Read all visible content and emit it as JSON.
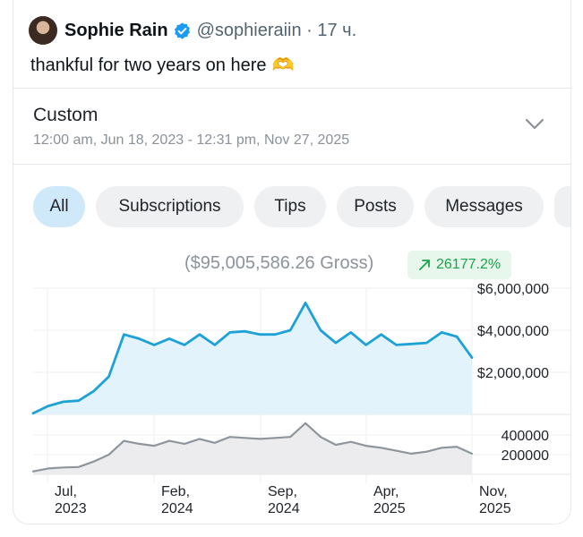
{
  "tweet": {
    "author_name": "Sophie Rain",
    "handle": "@sophieraiin · 17 ч.",
    "text": "thankful for two years on here",
    "emoji": "🫶"
  },
  "range": {
    "title": "Custom",
    "subtitle": "12:00 am, Jun 18, 2023 - 12:31 pm, Nov 27, 2025"
  },
  "tabs": [
    {
      "label": "All",
      "active": true
    },
    {
      "label": "Subscriptions",
      "active": false
    },
    {
      "label": "Tips",
      "active": false
    },
    {
      "label": "Posts",
      "active": false
    },
    {
      "label": "Messages",
      "active": false
    }
  ],
  "summary": {
    "gross": "($95,005,586.26 Gross)",
    "change": "26177.2%"
  },
  "colors": {
    "accent": "#1da1d6",
    "area_fill": "#e2f3fc",
    "secondary_line": "#8e959c",
    "secondary_fill": "#ececee",
    "positive": "#1aa34a"
  },
  "chart_data": [
    {
      "type": "area",
      "title": "Earnings",
      "x": [
        "Jun 2023",
        "Jul 2023",
        "Aug 2023",
        "Sep 2023",
        "Oct 2023",
        "Nov 2023",
        "Dec 2023",
        "Jan 2024",
        "Feb 2024",
        "Mar 2024",
        "Apr 2024",
        "May 2024",
        "Jun 2024",
        "Jul 2024",
        "Aug 2024",
        "Sep 2024",
        "Oct 2024",
        "Nov 2024",
        "Dec 2024",
        "Jan 2025",
        "Feb 2025",
        "Mar 2025",
        "Apr 2025",
        "May 2025",
        "Jun 2025",
        "Jul 2025",
        "Aug 2025",
        "Sep 2025",
        "Oct 2025",
        "Nov 2025"
      ],
      "values": [
        50000,
        400000,
        600000,
        650000,
        1100000,
        1800000,
        3800000,
        3600000,
        3300000,
        3600000,
        3300000,
        3800000,
        3300000,
        3900000,
        3950000,
        3800000,
        3800000,
        4000000,
        5300000,
        4000000,
        3400000,
        3900000,
        3300000,
        3800000,
        3300000,
        3350000,
        3400000,
        3900000,
        3700000,
        2700000
      ],
      "ylim": [
        0,
        6000000
      ],
      "yticks": [
        "$6,000,000",
        "$4,000,000",
        "$2,000,000"
      ],
      "ytick_values": [
        6000000,
        4000000,
        2000000
      ],
      "grid": true
    },
    {
      "type": "area",
      "title": "Count",
      "x": [
        "Jun 2023",
        "Jul 2023",
        "Aug 2023",
        "Sep 2023",
        "Oct 2023",
        "Nov 2023",
        "Dec 2023",
        "Jan 2024",
        "Feb 2024",
        "Mar 2024",
        "Apr 2024",
        "May 2024",
        "Jun 2024",
        "Jul 2024",
        "Aug 2024",
        "Sep 2024",
        "Oct 2024",
        "Nov 2024",
        "Dec 2024",
        "Jan 2025",
        "Feb 2025",
        "Mar 2025",
        "Apr 2025",
        "May 2025",
        "Jun 2025",
        "Jul 2025",
        "Aug 2025",
        "Sep 2025",
        "Oct 2025",
        "Nov 2025"
      ],
      "values": [
        30000,
        60000,
        70000,
        75000,
        130000,
        200000,
        340000,
        310000,
        290000,
        340000,
        310000,
        360000,
        320000,
        380000,
        370000,
        360000,
        370000,
        380000,
        520000,
        380000,
        300000,
        330000,
        290000,
        270000,
        240000,
        210000,
        230000,
        270000,
        280000,
        210000
      ],
      "ylim": [
        0,
        500000
      ],
      "yticks": [
        "400000",
        "200000"
      ],
      "ytick_values": [
        400000,
        200000
      ],
      "grid": true
    }
  ],
  "x_axis": [
    {
      "month": "Jul,",
      "year": "2023"
    },
    {
      "month": "Feb,",
      "year": "2024"
    },
    {
      "month": "Sep,",
      "year": "2024"
    },
    {
      "month": "Apr,",
      "year": "2025"
    },
    {
      "month": "Nov,",
      "year": "2025"
    }
  ]
}
